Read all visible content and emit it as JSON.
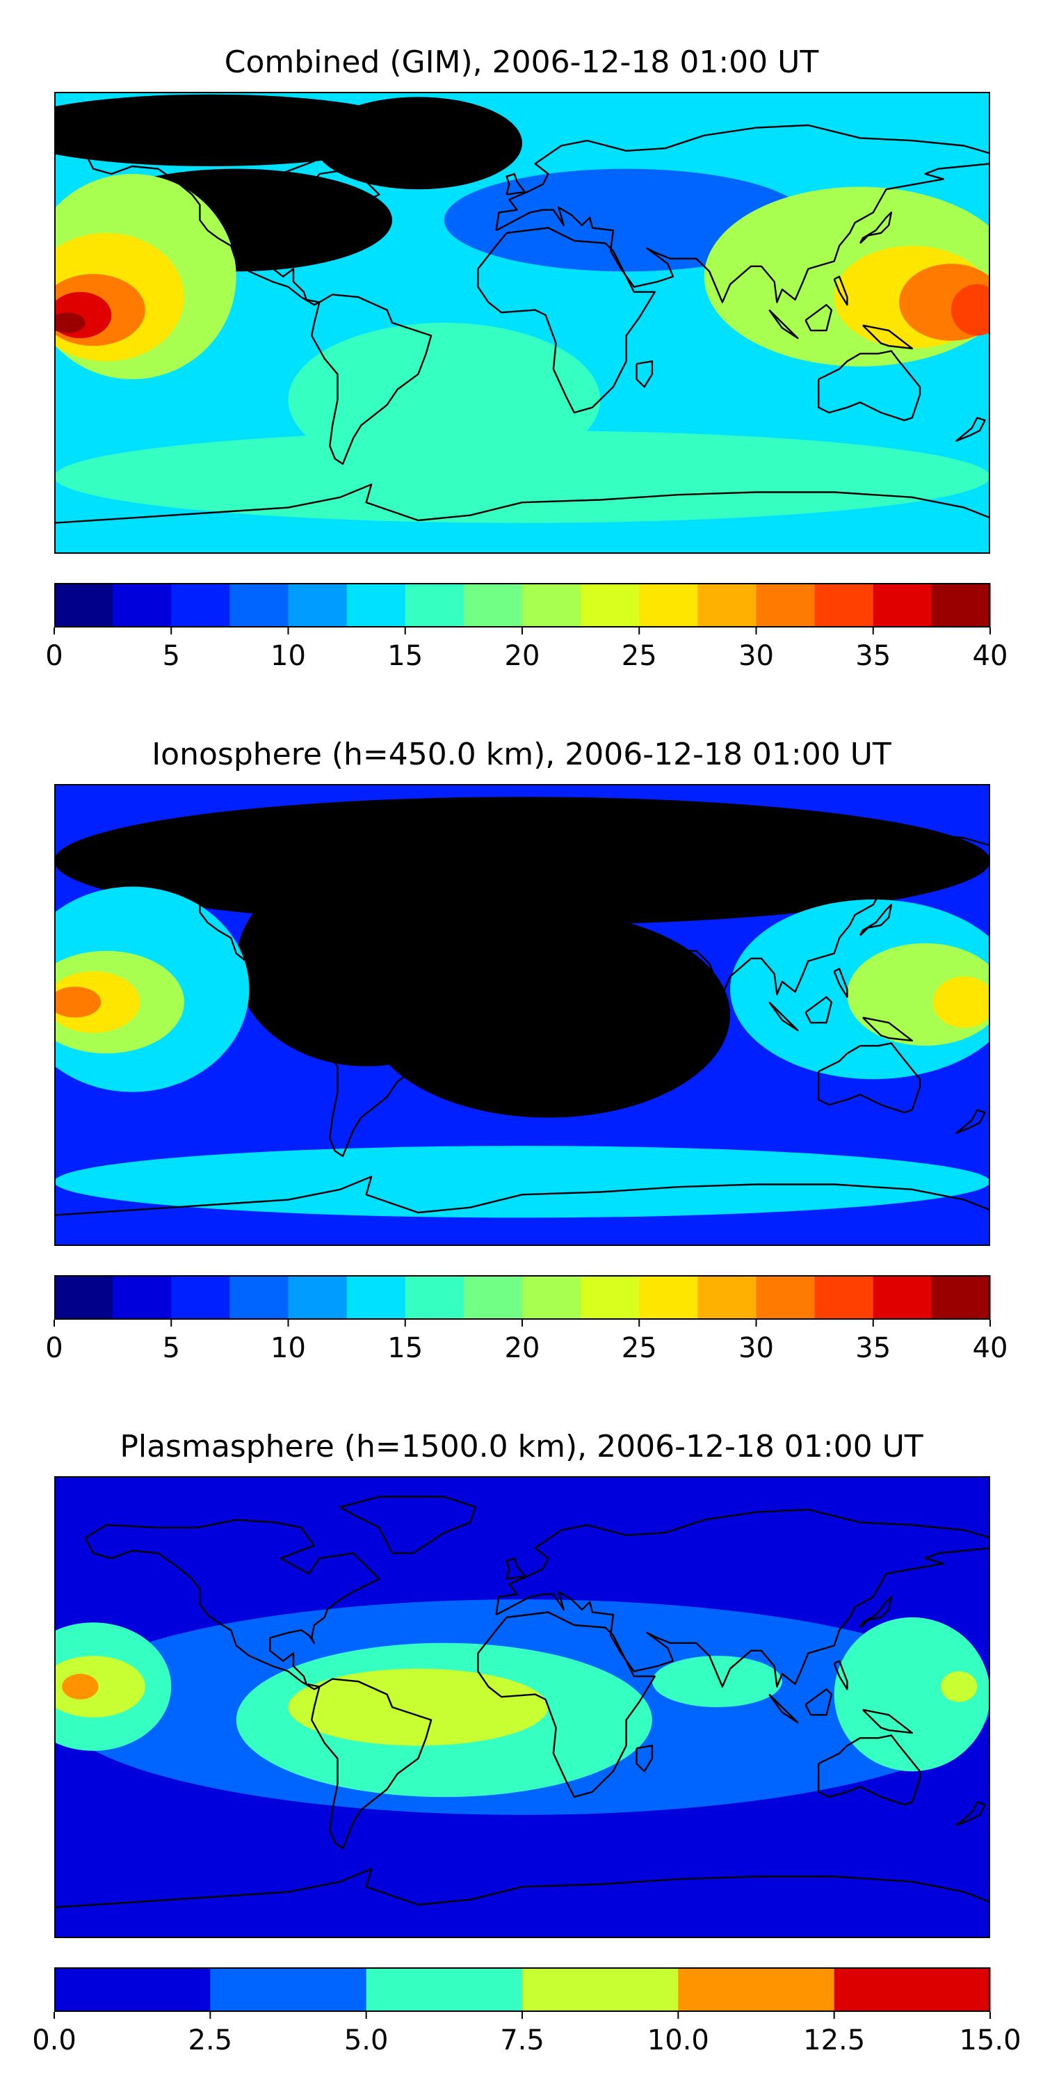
{
  "chart_data": [
    {
      "type": "heatmap",
      "title": "Combined (GIM), 2006-12-18 01:00 UT",
      "colorbar": {
        "levels": [
          0,
          2.5,
          5,
          7.5,
          10,
          12.5,
          15,
          17.5,
          20,
          22.5,
          25,
          27.5,
          30,
          32.5,
          35,
          37.5,
          40
        ],
        "tick_labels": [
          "0",
          "5",
          "10",
          "15",
          "20",
          "25",
          "30",
          "35",
          "40"
        ],
        "tick_values": [
          0,
          5,
          10,
          15,
          20,
          25,
          30,
          35,
          40
        ],
        "colors": [
          "#00008b",
          "#0000dc",
          "#0020ff",
          "#0064ff",
          "#009cff",
          "#00e0ff",
          "#35ffc1",
          "#71ff86",
          "#a8ff4f",
          "#d8ff1e",
          "#ffe600",
          "#ffb000",
          "#ff7a00",
          "#ff4000",
          "#e00000",
          "#9a0000"
        ]
      },
      "background_level": 5,
      "regions": [
        {
          "lon": -120,
          "lat": 75,
          "rx": 80,
          "ry": 14,
          "v": 0.5
        },
        {
          "lon": -40,
          "lat": 70,
          "rx": 40,
          "ry": 18,
          "v": 0.5
        },
        {
          "lon": -110,
          "lat": 40,
          "rx": 60,
          "ry": 20,
          "v": 1.5
        },
        {
          "lon": 40,
          "lat": 40,
          "rx": 70,
          "ry": 20,
          "v": 3
        },
        {
          "lon": -150,
          "lat": 18,
          "rx": 40,
          "ry": 40,
          "v": 8
        },
        {
          "lon": 130,
          "lat": 18,
          "rx": 60,
          "ry": 35,
          "v": 8
        },
        {
          "lon": -30,
          "lat": -30,
          "rx": 60,
          "ry": 30,
          "v": 6
        },
        {
          "lon": 0,
          "lat": -60,
          "rx": 180,
          "ry": 18,
          "v": 6
        },
        {
          "lon": -160,
          "lat": 10,
          "rx": 30,
          "ry": 25,
          "v": 10
        },
        {
          "lon": 150,
          "lat": 10,
          "rx": 30,
          "ry": 20,
          "v": 10
        },
        {
          "lon": -165,
          "lat": 5,
          "rx": 20,
          "ry": 14,
          "v": 12
        },
        {
          "lon": 165,
          "lat": 8,
          "rx": 20,
          "ry": 15,
          "v": 12
        },
        {
          "lon": -170,
          "lat": 3,
          "rx": 12,
          "ry": 9,
          "v": 14
        },
        {
          "lon": 175,
          "lat": 5,
          "rx": 10,
          "ry": 10,
          "v": 13
        },
        {
          "lon": -175,
          "lat": 0,
          "rx": 7,
          "ry": 4,
          "v": 15
        }
      ]
    },
    {
      "type": "heatmap",
      "title": "Ionosphere  (h=450.0 km), 2006-12-18 01:00 UT",
      "colorbar": {
        "levels": [
          0,
          2.5,
          5,
          7.5,
          10,
          12.5,
          15,
          17.5,
          20,
          22.5,
          25,
          27.5,
          30,
          32.5,
          35,
          37.5,
          40
        ],
        "tick_labels": [
          "0",
          "5",
          "10",
          "15",
          "20",
          "25",
          "30",
          "35",
          "40"
        ],
        "tick_values": [
          0,
          5,
          10,
          15,
          20,
          25,
          30,
          35,
          40
        ],
        "colors": [
          "#00008b",
          "#0000dc",
          "#0020ff",
          "#0064ff",
          "#009cff",
          "#00e0ff",
          "#35ffc1",
          "#71ff86",
          "#a8ff4f",
          "#d8ff1e",
          "#ffe600",
          "#ffb000",
          "#ff7a00",
          "#ff4000",
          "#e00000",
          "#9a0000"
        ]
      },
      "background_level": 2,
      "regions": [
        {
          "lon": 0,
          "lat": 60,
          "rx": 180,
          "ry": 25,
          "v": 0.5
        },
        {
          "lon": 10,
          "lat": 0,
          "rx": 70,
          "ry": 40,
          "v": 0.5
        },
        {
          "lon": -60,
          "lat": 20,
          "rx": 50,
          "ry": 40,
          "v": 0.5
        },
        {
          "lon": -150,
          "lat": 10,
          "rx": 45,
          "ry": 40,
          "v": 5
        },
        {
          "lon": 135,
          "lat": 10,
          "rx": 55,
          "ry": 35,
          "v": 5
        },
        {
          "lon": 0,
          "lat": -65,
          "rx": 180,
          "ry": 14,
          "v": 5
        },
        {
          "lon": -160,
          "lat": 5,
          "rx": 30,
          "ry": 20,
          "v": 8
        },
        {
          "lon": 155,
          "lat": 8,
          "rx": 30,
          "ry": 20,
          "v": 8
        },
        {
          "lon": -165,
          "lat": 5,
          "rx": 18,
          "ry": 12,
          "v": 10
        },
        {
          "lon": 170,
          "lat": 5,
          "rx": 12,
          "ry": 10,
          "v": 10
        },
        {
          "lon": -172,
          "lat": 5,
          "rx": 10,
          "ry": 6,
          "v": 12
        }
      ]
    },
    {
      "type": "heatmap",
      "title": "Plasmasphere (h=1500.0 km), 2006-12-18 01:00 UT",
      "colorbar": {
        "levels": [
          0.0,
          2.5,
          5.0,
          7.5,
          10.0,
          12.5,
          15.0
        ],
        "tick_labels": [
          "0.0",
          "2.5",
          "5.0",
          "7.5",
          "10.0",
          "12.5",
          "15.0"
        ],
        "tick_values": [
          0.0,
          2.5,
          5.0,
          7.5,
          10.0,
          12.5,
          15.0
        ],
        "colors": [
          "#0000dc",
          "#0064ff",
          "#35ffc1",
          "#c8ff32",
          "#ff9400",
          "#dc0000"
        ]
      },
      "background_level": 0,
      "regions": [
        {
          "lon": 0,
          "lat": 0,
          "rx": 180,
          "ry": 42,
          "v": 1
        },
        {
          "lon": -30,
          "lat": -5,
          "rx": 80,
          "ry": 30,
          "v": 2
        },
        {
          "lon": -165,
          "lat": 8,
          "rx": 30,
          "ry": 25,
          "v": 2
        },
        {
          "lon": 150,
          "lat": 5,
          "rx": 30,
          "ry": 30,
          "v": 2
        },
        {
          "lon": 75,
          "lat": 10,
          "rx": 25,
          "ry": 10,
          "v": 2
        },
        {
          "lon": -165,
          "lat": 8,
          "rx": 20,
          "ry": 12,
          "v": 3
        },
        {
          "lon": -40,
          "lat": 0,
          "rx": 50,
          "ry": 15,
          "v": 3
        },
        {
          "lon": 168,
          "lat": 8,
          "rx": 7,
          "ry": 6,
          "v": 3
        },
        {
          "lon": -170,
          "lat": 8,
          "rx": 7,
          "ry": 5,
          "v": 4
        }
      ]
    }
  ],
  "coastline_color": "#000000"
}
